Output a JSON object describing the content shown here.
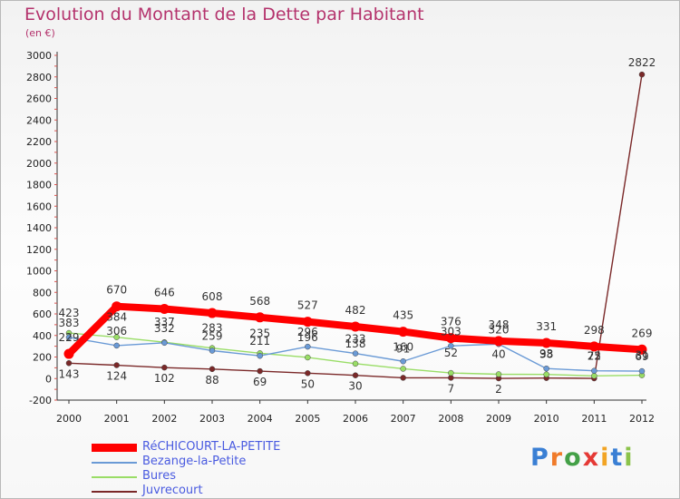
{
  "chart_data": {
    "type": "line",
    "title": "Evolution du Montant de la Dette par Habitant",
    "subtitle": "(en €)",
    "xlabel": "",
    "ylabel": "",
    "ylim": [
      -200,
      3000
    ],
    "yticks": [
      -200,
      0,
      200,
      400,
      600,
      800,
      1000,
      1200,
      1400,
      1600,
      1800,
      2000,
      2200,
      2400,
      2600,
      2800,
      3000
    ],
    "categories": [
      "2000",
      "2001",
      "2002",
      "2003",
      "2004",
      "2005",
      "2006",
      "2007",
      "2008",
      "2009",
      "2010",
      "2011",
      "2012"
    ],
    "series": [
      {
        "name": "RéCHICOURT-LA-PETITE",
        "color": "#ff0000",
        "values": [
          229,
          670,
          646,
          608,
          568,
          527,
          482,
          435,
          376,
          348,
          331,
          298,
          269
        ],
        "labels": [
          "229",
          "670",
          "646",
          "608",
          "568",
          "527",
          "482",
          "435",
          "376",
          "348",
          "331",
          "298",
          "269"
        ]
      },
      {
        "name": "Bezange-la-Petite",
        "color": "#6a9ad6",
        "values": [
          383,
          306,
          332,
          259,
          211,
          296,
          233,
          160,
          303,
          320,
          93,
          72,
          69
        ],
        "labels": [
          "383",
          "306",
          "332",
          "259",
          "211",
          "296",
          "233",
          "160",
          "303",
          "320",
          "93",
          "72",
          "69"
        ]
      },
      {
        "name": "Bures",
        "color": "#99dd66",
        "values": [
          423,
          384,
          337,
          283,
          235,
          196,
          138,
          91,
          52,
          40,
          38,
          25,
          31
        ],
        "labels": [
          "423",
          "384",
          "337",
          "283",
          "235",
          "196",
          "138",
          "91",
          "52",
          "40",
          "38",
          "25",
          "31"
        ]
      },
      {
        "name": "Juvrecourt",
        "color": "#7a2828",
        "values": [
          143,
          124,
          102,
          88,
          69,
          50,
          30,
          7,
          7,
          2,
          5,
          2,
          2822
        ],
        "labels": [
          "143",
          "124",
          "102",
          "88",
          "69",
          "50",
          "30",
          "",
          "7",
          "2",
          "",
          "",
          "2822"
        ]
      }
    ],
    "legend_position": "bottom-left",
    "grid": false
  },
  "legend": [
    {
      "label": "RéCHICOURT-LA-PETITE",
      "color": "#ff0000"
    },
    {
      "label": "Bezange-la-Petite",
      "color": "#6a9ad6"
    },
    {
      "label": "Bures",
      "color": "#99dd66"
    },
    {
      "label": "Juvrecourt",
      "color": "#7a2828"
    }
  ],
  "brand": {
    "letters": [
      "P",
      "r",
      "o",
      "x",
      "i",
      "t",
      "i"
    ]
  }
}
